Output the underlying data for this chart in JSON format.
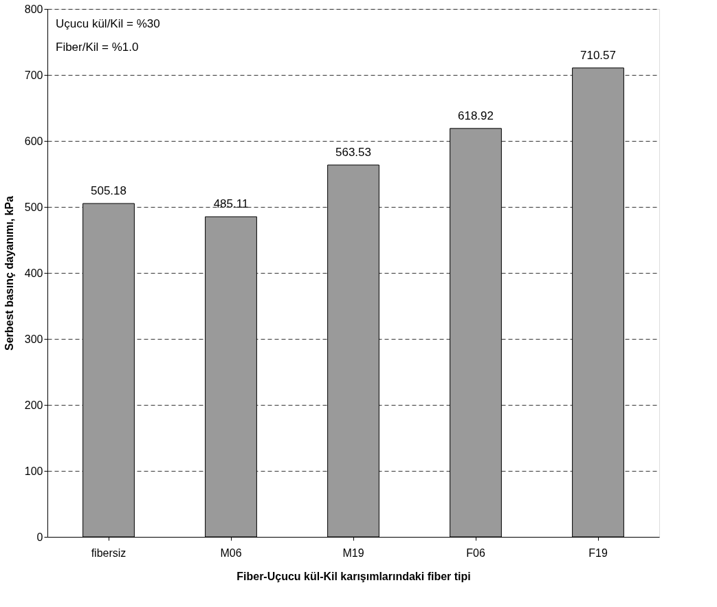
{
  "chart_data": {
    "type": "bar",
    "xlabel": "Fiber-Uçucu kül-Kil karışımlarındaki fiber tipi",
    "ylabel": "Serbest basınç dayanımı, kPa",
    "annotations": [
      "Uçucu kül/Kil = %30",
      "Fiber/Kil = %1.0"
    ],
    "categories": [
      "fibersiz",
      "M06",
      "M19",
      "F06",
      "F19"
    ],
    "values": [
      505.18,
      485.11,
      563.53,
      618.92,
      710.57
    ],
    "color": "#9a9a9a",
    "ylim": [
      0,
      800
    ],
    "yticks": [
      0,
      100,
      200,
      300,
      400,
      500,
      600,
      700,
      800
    ],
    "grid": "y",
    "data_labels": true
  }
}
